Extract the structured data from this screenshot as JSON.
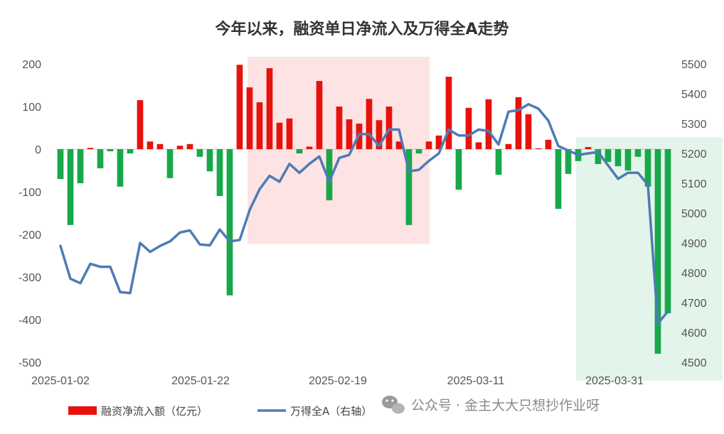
{
  "chart_data": {
    "type": "bar+line",
    "title": "今年以来，融资单日净流入及万得全A走势",
    "x_tick_labels": [
      "2025-01-02",
      "2025-01-22",
      "2025-02-19",
      "2025-03-11",
      "2025-03-31"
    ],
    "y_left": {
      "min": -500,
      "max": 200,
      "ticks": [
        200,
        100,
        0,
        -100,
        -200,
        -300,
        -400,
        -500
      ]
    },
    "y_right": {
      "min": 4500,
      "max": 5500,
      "ticks": [
        5500,
        5400,
        5300,
        5200,
        5100,
        5000,
        4900,
        4800,
        4700,
        4600,
        4500
      ]
    },
    "highlight_regions": [
      {
        "start_index": 19,
        "end_index": 37,
        "color": "#fde3e3"
      },
      {
        "start_index": 52,
        "end_index": 64,
        "color": "#e3f5ea"
      }
    ],
    "series": [
      {
        "name": "融资净流入额（亿元）",
        "kind": "bar",
        "axis": "left",
        "positive_color": "#e8120c",
        "negative_color": "#18a84a",
        "values": [
          -70,
          -178,
          -80,
          3,
          -45,
          -5,
          -88,
          -10,
          115,
          18,
          12,
          -68,
          8,
          12,
          -18,
          -52,
          -110,
          -343,
          198,
          145,
          110,
          190,
          62,
          72,
          -10,
          6,
          160,
          -120,
          100,
          70,
          60,
          118,
          68,
          100,
          18,
          -178,
          -10,
          18,
          32,
          170,
          -95,
          97,
          16,
          117,
          -60,
          12,
          122,
          82,
          2,
          22,
          -140,
          -58,
          -28,
          5,
          -35,
          -30,
          -40,
          -50,
          -18,
          -88,
          -480,
          -385
        ]
      },
      {
        "name": "万得全A（右轴）",
        "kind": "line",
        "axis": "right",
        "color": "#4e7bb6",
        "values": [
          4890,
          4780,
          4765,
          4830,
          4820,
          4820,
          4735,
          4732,
          4900,
          4870,
          4890,
          4905,
          4935,
          4942,
          4895,
          4892,
          4945,
          4905,
          4910,
          5010,
          5080,
          5125,
          5105,
          5165,
          5135,
          5165,
          5190,
          5105,
          5185,
          5195,
          5265,
          5265,
          5225,
          5280,
          5280,
          5140,
          5145,
          5175,
          5200,
          5280,
          5260,
          5260,
          5280,
          5275,
          5230,
          5340,
          5345,
          5365,
          5350,
          5310,
          5225,
          5210,
          5195,
          5200,
          5205,
          5160,
          5115,
          5135,
          5135,
          5095,
          4630,
          4670
        ]
      }
    ]
  },
  "watermark": {
    "text": "公众号 · 金主大大只想抄作业呀",
    "icon": "wechat-icon"
  }
}
